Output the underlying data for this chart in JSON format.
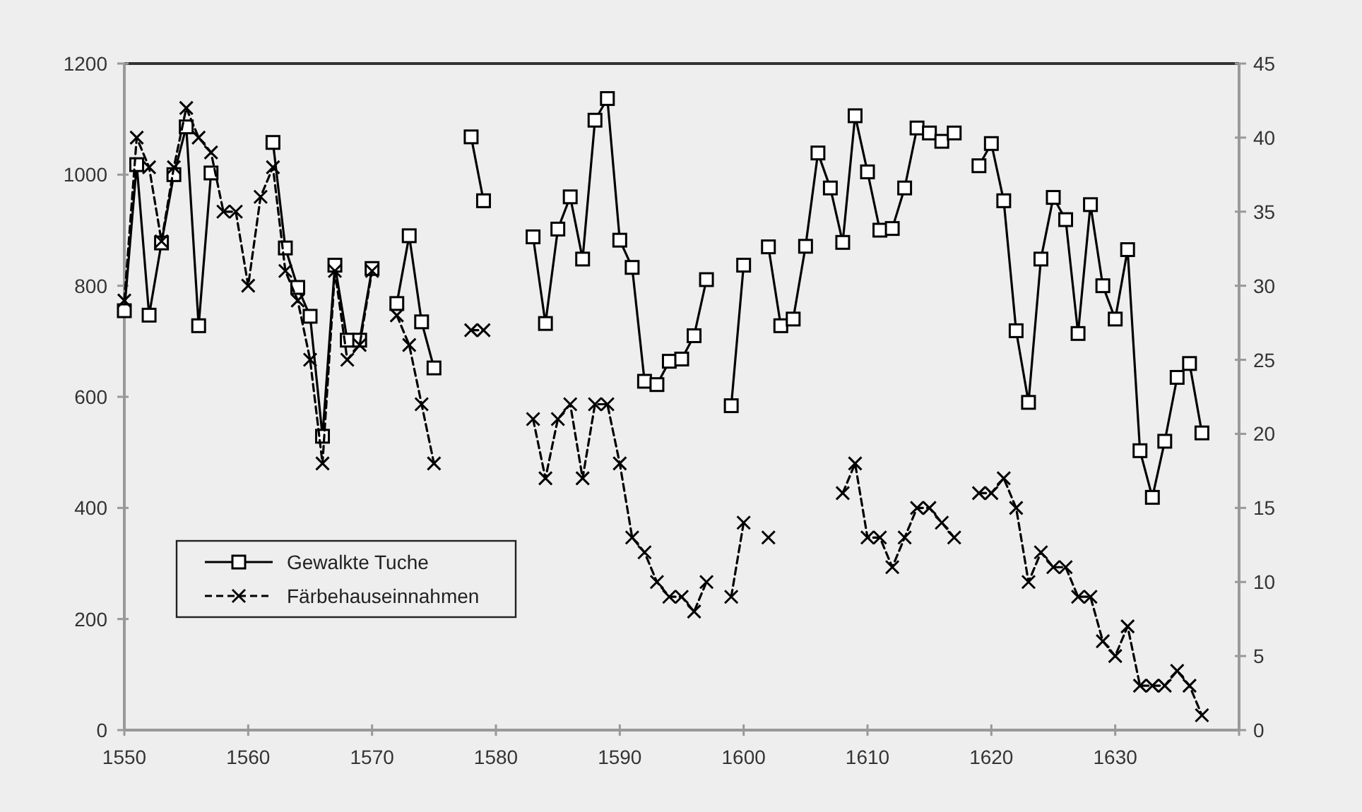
{
  "chart_data": {
    "type": "line",
    "x": [
      1550,
      1551,
      1552,
      1553,
      1554,
      1555,
      1556,
      1557,
      1558,
      1559,
      1560,
      1561,
      1562,
      1563,
      1564,
      1565,
      1566,
      1567,
      1568,
      1569,
      1570,
      1571,
      1572,
      1573,
      1574,
      1575,
      1576,
      1577,
      1578,
      1579,
      1580,
      1581,
      1582,
      1583,
      1584,
      1585,
      1586,
      1587,
      1588,
      1589,
      1590,
      1591,
      1592,
      1593,
      1594,
      1595,
      1596,
      1597,
      1598,
      1599,
      1600,
      1601,
      1602,
      1603,
      1604,
      1605,
      1606,
      1607,
      1608,
      1609,
      1610,
      1611,
      1612,
      1613,
      1614,
      1615,
      1616,
      1617,
      1618,
      1619,
      1620,
      1621,
      1622,
      1623,
      1624,
      1625,
      1626,
      1627,
      1628,
      1629,
      1630,
      1631,
      1632,
      1633,
      1634,
      1635,
      1636,
      1637
    ],
    "series": [
      {
        "name": "Gewalkte Tuche",
        "color": "#000000",
        "marker": "square",
        "line_style": "solid",
        "values": [
          755,
          1018,
          747,
          877,
          1000,
          1086,
          728,
          1003,
          null,
          null,
          null,
          null,
          1058,
          868,
          797,
          745,
          529,
          837,
          702,
          702,
          831,
          null,
          768,
          890,
          735,
          652,
          null,
          null,
          1068,
          953,
          null,
          null,
          null,
          888,
          732,
          902,
          960,
          848,
          1098,
          1137,
          882,
          833,
          628,
          622,
          664,
          668,
          710,
          811,
          null,
          584,
          837,
          null,
          870,
          728,
          740,
          871,
          1039,
          976,
          878,
          1106,
          1005,
          900,
          903,
          976,
          1084,
          1075,
          1060,
          1075,
          null,
          1016,
          1056,
          953,
          719,
          590,
          848,
          959,
          919,
          714,
          946,
          800,
          740,
          865,
          503,
          419,
          520,
          635,
          660,
          535
        ]
      },
      {
        "name": "Färbehauseinnahmen",
        "color": "#000000",
        "marker": "cross",
        "line_style": "dashed",
        "axis": "y2",
        "values": [
          29,
          40,
          38,
          33,
          38,
          42,
          40,
          39,
          35,
          35,
          30,
          36,
          38,
          31,
          29,
          25,
          18,
          31,
          25,
          26,
          31,
          null,
          28,
          26,
          22,
          18,
          null,
          null,
          27,
          27,
          null,
          null,
          null,
          21,
          17,
          21,
          22,
          17,
          22,
          22,
          18,
          13,
          12,
          10,
          9,
          9,
          8,
          10,
          null,
          9,
          14,
          null,
          13,
          null,
          null,
          null,
          null,
          null,
          16,
          18,
          13,
          13,
          11,
          13,
          15,
          15,
          14,
          13,
          null,
          16,
          16,
          17,
          15,
          10,
          12,
          11,
          11,
          9,
          9,
          6,
          5,
          7,
          3,
          3,
          3,
          4,
          3,
          1
        ]
      }
    ],
    "xlim": [
      1550,
      1640
    ],
    "xticks": [
      1550,
      1560,
      1570,
      1580,
      1590,
      1600,
      1610,
      1620,
      1630,
      {
        "value": 1640,
        "label": null
      }
    ],
    "ylim": [
      0,
      1200
    ],
    "yticks": [
      0,
      200,
      400,
      600,
      800,
      1000,
      1200
    ],
    "y2lim": [
      0,
      45
    ],
    "y2ticks": [
      0,
      5,
      10,
      15,
      20,
      25,
      30,
      35,
      40,
      45
    ],
    "legend": "bottom left",
    "grid": false
  }
}
